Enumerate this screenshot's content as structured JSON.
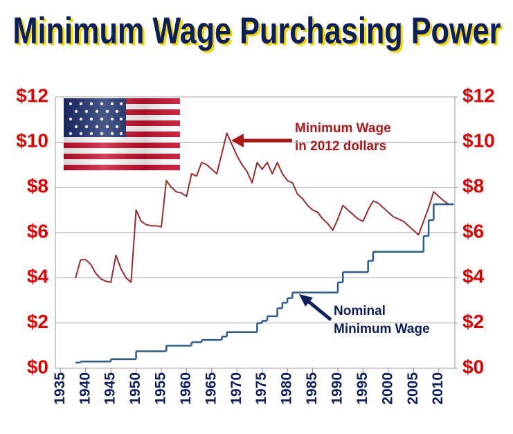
{
  "chart_data": {
    "type": "line",
    "title": "Minimum Wage Purchasing Power",
    "xlim": [
      1934,
      2013.2
    ],
    "xticks": [
      1935,
      1940,
      1945,
      1950,
      1955,
      1960,
      1965,
      1970,
      1975,
      1980,
      1985,
      1990,
      1995,
      2000,
      2005,
      2010
    ],
    "ylim": [
      0,
      12
    ],
    "yticks": [
      {
        "value": 0,
        "label": "$0"
      },
      {
        "value": 2,
        "label": "$2"
      },
      {
        "value": 4,
        "label": "$4"
      },
      {
        "value": 6,
        "label": "$6"
      },
      {
        "value": 8,
        "label": "$8"
      },
      {
        "value": 10,
        "label": "$10"
      },
      {
        "value": 12,
        "label": "$12"
      }
    ],
    "y2lim": [
      0,
      12
    ],
    "y2ticks": [
      {
        "value": 0,
        "label": "$0"
      },
      {
        "value": 2,
        "label": "$2"
      },
      {
        "value": 4,
        "label": "$4"
      },
      {
        "value": 6,
        "label": "$6"
      },
      {
        "value": 8,
        "label": "$8"
      },
      {
        "value": 10,
        "label": "$10"
      },
      {
        "value": 12,
        "label": "$12"
      }
    ],
    "grid": true,
    "series": [
      {
        "name": "Minimum Wage in 2012 dollars",
        "color": "#9b2b2b",
        "x": [
          1938,
          1939,
          1940,
          1941,
          1942,
          1943,
          1944,
          1945,
          1946,
          1947,
          1948,
          1949,
          1950,
          1951,
          1952,
          1953,
          1954,
          1955,
          1956,
          1957,
          1958,
          1959,
          1960,
          1961,
          1962,
          1963,
          1964,
          1965,
          1966,
          1967,
          1968,
          1969,
          1970,
          1971,
          1972,
          1973,
          1974,
          1975,
          1976,
          1977,
          1978,
          1979,
          1980,
          1981,
          1982,
          1983,
          1984,
          1985,
          1986,
          1987,
          1988,
          1989,
          1990,
          1991,
          1992,
          1993,
          1994,
          1995,
          1996,
          1997,
          1998,
          1999,
          2000,
          2001,
          2002,
          2003,
          2004,
          2005,
          2006,
          2007,
          2008,
          2009,
          2010,
          2011,
          2012,
          2013
        ],
        "values": [
          4.0,
          4.8,
          4.8,
          4.6,
          4.2,
          3.95,
          3.85,
          3.8,
          5.0,
          4.4,
          4.0,
          3.8,
          7.0,
          6.5,
          6.35,
          6.3,
          6.3,
          6.25,
          8.3,
          8.0,
          7.8,
          7.75,
          7.6,
          8.6,
          8.5,
          9.1,
          9.0,
          8.8,
          8.6,
          9.5,
          10.4,
          9.9,
          9.4,
          9.0,
          8.7,
          8.2,
          9.1,
          8.8,
          9.1,
          8.6,
          9.1,
          8.6,
          8.3,
          8.2,
          7.7,
          7.5,
          7.2,
          7.0,
          6.9,
          6.6,
          6.4,
          6.1,
          6.6,
          7.2,
          7.0,
          6.8,
          6.6,
          6.5,
          7.0,
          7.4,
          7.3,
          7.1,
          6.9,
          6.7,
          6.6,
          6.5,
          6.3,
          6.1,
          5.9,
          6.5,
          7.1,
          7.8,
          7.6,
          7.4,
          7.25,
          7.25
        ]
      },
      {
        "name": "Nominal Minimum Wage",
        "color": "#2a5a8e",
        "drawstyle": "steps-post",
        "x": [
          1938,
          1939,
          1945,
          1950,
          1956,
          1961,
          1963,
          1967,
          1968,
          1974,
          1975,
          1976,
          1978,
          1979,
          1980,
          1981,
          1990,
          1991,
          1996,
          1997,
          2007,
          2008,
          2009,
          2013
        ],
        "values": [
          0.25,
          0.3,
          0.4,
          0.75,
          1.0,
          1.15,
          1.25,
          1.4,
          1.6,
          2.0,
          2.1,
          2.3,
          2.65,
          2.9,
          3.1,
          3.35,
          3.8,
          4.25,
          4.75,
          5.15,
          5.85,
          6.55,
          7.25,
          7.25
        ]
      }
    ]
  }
}
